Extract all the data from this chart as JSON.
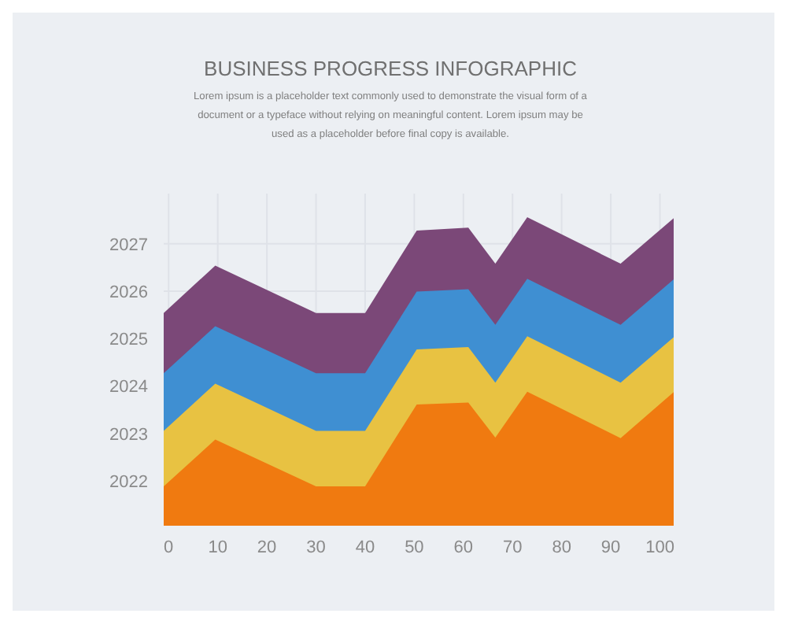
{
  "chart_data": {
    "type": "area",
    "title": "BUSINESS PROGRESS INFOGRAPHIC",
    "subtitle": "Lorem ipsum is a placeholder text commonly used to demonstrate the visual form of a document or a typeface without relying on meaningful content. Lorem ipsum may be used as a placeholder before final copy is available.",
    "x": [
      -1,
      9.5,
      30,
      40,
      50.5,
      61,
      66.5,
      73,
      92,
      102.8
    ],
    "series": [
      {
        "color": "#7b4878",
        "values": [
          2025.54,
          2026.54,
          2025.54,
          2025.54,
          2027.28,
          2027.34,
          2026.58,
          2027.56,
          2026.58,
          2027.54
        ]
      },
      {
        "color": "#3f8fd2",
        "values": [
          2024.27,
          2025.26,
          2024.27,
          2024.27,
          2025.99,
          2026.04,
          2025.29,
          2026.26,
          2025.29,
          2026.25
        ]
      },
      {
        "color": "#e8c242",
        "values": [
          2023.05,
          2024.05,
          2023.05,
          2023.05,
          2024.77,
          2024.82,
          2024.07,
          2025.05,
          2024.07,
          2025.03
        ]
      },
      {
        "color": "#f07a10",
        "values": [
          2021.88,
          2022.87,
          2021.88,
          2021.88,
          2023.61,
          2023.65,
          2022.91,
          2023.88,
          2022.9,
          2023.87
        ]
      }
    ],
    "xlim": [
      -1,
      102.8
    ],
    "ylim": [
      2021.05,
      2028.06
    ],
    "xticks": [
      0,
      10,
      20,
      30,
      40,
      50,
      60,
      70,
      80,
      90,
      100
    ],
    "yticks": [
      2022,
      2023,
      2024,
      2025,
      2026,
      2027
    ],
    "grid": true
  }
}
